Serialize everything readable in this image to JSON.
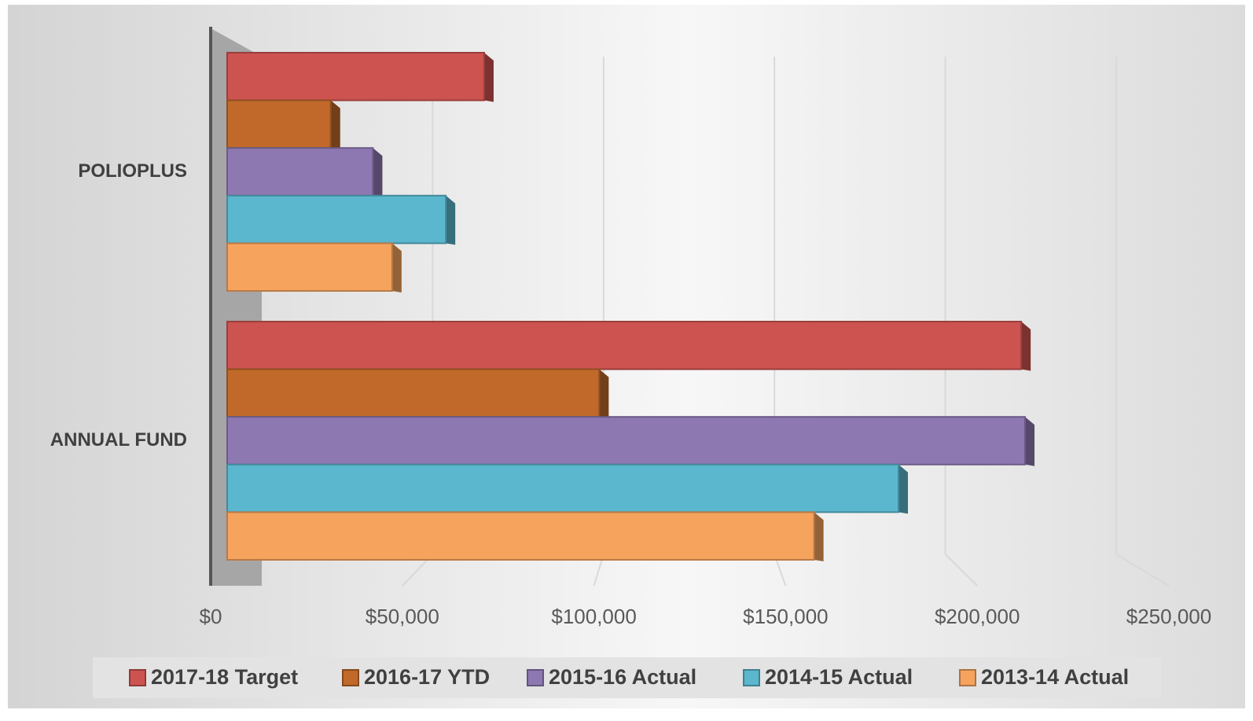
{
  "chart_data": {
    "type": "bar3d_horizontal",
    "categories": [
      "POLIOPLUS",
      "ANNUAL FUND"
    ],
    "series": [
      {
        "name": "2017-18 Target",
        "color": "#cd5350",
        "values": [
          67000,
          207000
        ]
      },
      {
        "name": "2016-17 YTD",
        "color": "#c0692a",
        "values": [
          27000,
          97000
        ]
      },
      {
        "name": "2015-16  Actual",
        "color": "#8e78b2",
        "values": [
          38000,
          208000
        ]
      },
      {
        "name": "2014-15  Actual",
        "color": "#5bb7cd",
        "values": [
          57000,
          175000
        ]
      },
      {
        "name": "2013-14 Actual",
        "color": "#f6a35e",
        "values": [
          43000,
          153000
        ]
      }
    ],
    "xlim": [
      0,
      250000
    ],
    "xticks": [
      {
        "value": 0,
        "label": "$0"
      },
      {
        "value": 50000,
        "label": "$50,000"
      },
      {
        "value": 100000,
        "label": "$100,000"
      },
      {
        "value": 150000,
        "label": "$150,000"
      },
      {
        "value": 200000,
        "label": "$200,000"
      },
      {
        "value": 250000,
        "label": "$250,000"
      }
    ],
    "grid": true,
    "legend": "bottom"
  }
}
